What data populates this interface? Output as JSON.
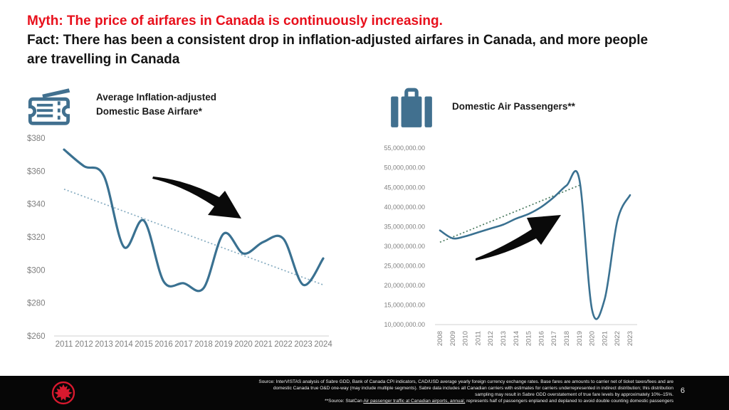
{
  "header": {
    "myth": "Myth: The price of airfares in Canada is continuously increasing.",
    "fact": "Fact: There has been a consistent drop in inflation-adjusted airfares in Canada, and more people are travelling in Canada"
  },
  "colors": {
    "accent_red": "#e8101c",
    "line_blue": "#3a7191",
    "trend_blue": "#85abc0",
    "trend_green": "#4a7a5f",
    "icon_blue": "#41708f",
    "logo_red": "#d8192e",
    "axis_gray": "#7f7f7f",
    "axis_line_gray": "#d9d9d9",
    "footer_black": "#060606"
  },
  "icons": {
    "left_panel": "ticket-icon",
    "right_panel": "suitcase-icon",
    "footer_logo": "air-canada-maple-leaf-logo"
  },
  "left_panel": {
    "title": "Average Inflation-adjusted Domestic Base Airfare*"
  },
  "right_panel": {
    "title": "Domestic Air Passengers**"
  },
  "chart_data": [
    {
      "type": "line",
      "title": "Average Inflation-adjusted Domestic Base Airfare*",
      "x_labels": [
        "2011",
        "2012",
        "2013",
        "2014",
        "2015",
        "2016",
        "2017",
        "2018",
        "2019",
        "2020",
        "2021",
        "2022",
        "2023",
        "2024"
      ],
      "series": [
        {
          "name": "Average inflation-adjusted domestic base airfare ($)",
          "values": [
            373,
            363,
            357,
            314,
            330,
            293,
            292,
            289,
            322,
            310,
            317,
            319,
            291,
            307
          ]
        }
      ],
      "trendline": {
        "start_index": 0,
        "end_index": 13,
        "start_value": 349,
        "end_value": 291
      },
      "ylim": [
        260,
        380
      ],
      "ytick_values": [
        380,
        360,
        340,
        320,
        300,
        280,
        260
      ],
      "ytick_labels": [
        "$380",
        "$360",
        "$340",
        "$320",
        "$300",
        "$280",
        "$260"
      ],
      "grid": false,
      "legend": "none",
      "annotation": "black curved arrow pointing down-right"
    },
    {
      "type": "line",
      "title": "Domestic Air Passengers**",
      "x_labels": [
        "2008",
        "2009",
        "2010",
        "2011",
        "2012",
        "2013",
        "2014",
        "2015",
        "2016",
        "2017",
        "2018",
        "2019",
        "2020",
        "2021",
        "2022",
        "2023"
      ],
      "series": [
        {
          "name": "Domestic air passengers",
          "values": [
            34000000,
            32000000,
            32500000,
            33500000,
            34500000,
            35500000,
            37000000,
            38200000,
            40000000,
            42500000,
            45500000,
            47000000,
            13800000,
            16500000,
            36500000,
            43000000
          ]
        }
      ],
      "trendline": {
        "start_index": 0,
        "end_index": 11,
        "start_value": 31000000,
        "end_value": 45500000
      },
      "ylim": [
        10000000,
        55000000
      ],
      "ytick_values": [
        55000000,
        50000000,
        45000000,
        40000000,
        35000000,
        30000000,
        25000000,
        20000000,
        15000000,
        10000000
      ],
      "ytick_labels": [
        "55,000,000.00",
        "50,000,000.00",
        "45,000,000.00",
        "40,000,000.00",
        "35,000,000.00",
        "30,000,000.00",
        "25,000,000.00",
        "20,000,000.00",
        "15,000,000.00",
        "10,000,000.00"
      ],
      "grid": false,
      "legend": "none",
      "annotation": "black curved arrow pointing up-right"
    }
  ],
  "footer": {
    "source_line1": "Source: InterVISTAS analysis of Sabre GDD, Bank of Canada CPI indicators, CAD/USD average yearly foreign currency exchange rates.  Base fares are amounts to carrier net of ticket taxes/fees and are",
    "source_line2": "domestic Canada true O&D one-way (may include multiple segments).  Sabre data includes all Canadian carriers with estimates for carriers underrepresented in indirect distribution; this distribution",
    "source_line3": "sampling may result in Sabre GDD overstatement of true fare levels by approximately 10%–15%.",
    "source_line4_prefix": "**Source: StatCan ",
    "source_line4_link": "Air passenger traffic at Canadian airports, annual;",
    "source_line4_suffix": " represents half of passengers enplaned and deplaned to avoid double counting domestic passengers",
    "page_number": "6"
  }
}
